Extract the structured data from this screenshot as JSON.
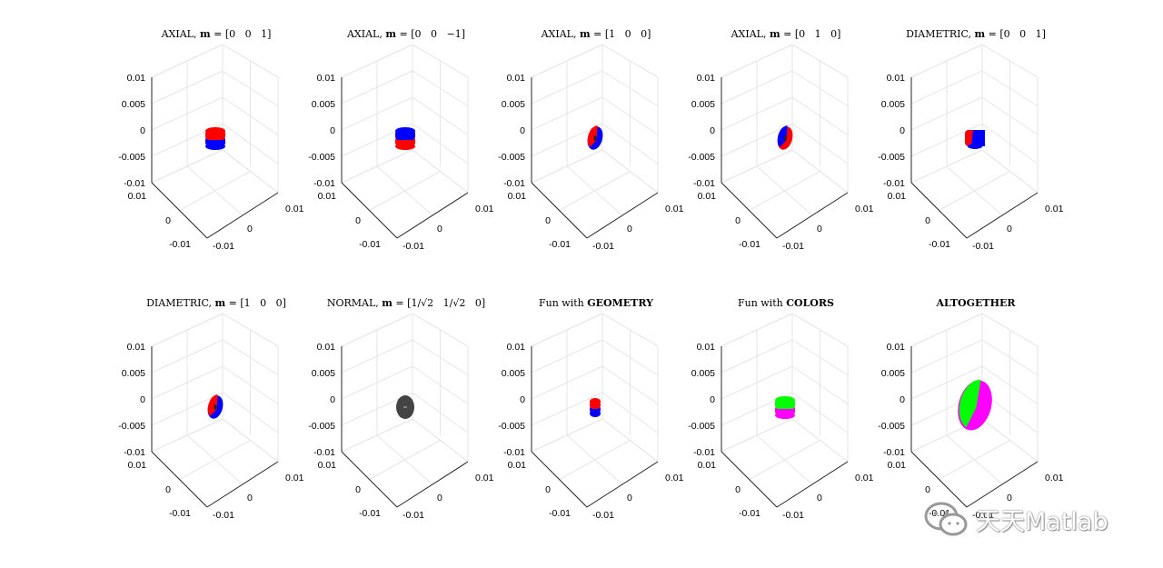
{
  "chart_data": [
    {
      "type": "scatter3d",
      "title_html": "AXIAL, <tspan font-weight='bold'>m</tspan> = [0 &#160; 0 &#160; 1]",
      "shape": {
        "kind": "cylinder",
        "size": "small",
        "colors": [
          "#ff0000",
          "#0000ff"
        ],
        "split": "horizontal"
      },
      "zticks": [
        "0.01",
        "0.005",
        "0",
        "-0.005",
        "-0.01"
      ],
      "xticks": [
        "0.01",
        "0",
        "-0.01"
      ],
      "yticks": [
        "-0.01",
        "0",
        "0.01"
      ],
      "zlim": [
        -0.01,
        0.01
      ]
    },
    {
      "type": "scatter3d",
      "title_html": "AXIAL, <tspan font-weight='bold'>m</tspan> = [0 &#160; 0 &#160; −1]",
      "shape": {
        "kind": "cylinder",
        "size": "small",
        "colors": [
          "#0000ff",
          "#ff0000"
        ],
        "split": "horizontal"
      },
      "zticks": [
        "0.01",
        "0.005",
        "0",
        "-0.005",
        "-0.01"
      ],
      "xticks": [
        "0.01",
        "0",
        "-0.01"
      ],
      "yticks": [
        "-0.01",
        "0",
        "0.01"
      ],
      "zlim": [
        -0.01,
        0.01
      ]
    },
    {
      "type": "scatter3d",
      "title_html": "AXIAL, <tspan font-weight='bold'>m</tspan> = [1 &#160; 0 &#160; 0]",
      "shape": {
        "kind": "tilted",
        "size": "small",
        "colors": [
          "#ff0000",
          "#0000ff"
        ],
        "split": "vertical"
      },
      "zticks": [
        "0.01",
        "0.005",
        "0",
        "-0.005",
        "-0.01"
      ],
      "xticks": [
        "0.01",
        "0",
        "-0.01"
      ],
      "yticks": [
        "-0.01",
        "0",
        "0.01"
      ],
      "zlim": [
        -0.01,
        0.01
      ]
    },
    {
      "type": "scatter3d",
      "title_html": "AXIAL, <tspan font-weight='bold'>m</tspan> = [0 &#160; 1 &#160; 0]",
      "shape": {
        "kind": "tilted",
        "size": "small",
        "colors": [
          "#0000ff",
          "#ff0000"
        ],
        "split": "vertical"
      },
      "zticks": [
        "0.01",
        "0.005",
        "0",
        "-0.005",
        "-0.01"
      ],
      "xticks": [
        "0.01",
        "0",
        "-0.01"
      ],
      "yticks": [
        "-0.01",
        "0",
        "0.01"
      ],
      "zlim": [
        -0.01,
        0.01
      ]
    },
    {
      "type": "scatter3d",
      "title_html": "DIAMETRIC, <tspan font-weight='bold'>m</tspan> = [0 &#160; 0 &#160; 1]",
      "shape": {
        "kind": "cylinder",
        "size": "small",
        "colors": [
          "#ff0000",
          "#0000ff"
        ],
        "split": "diagonal"
      },
      "zticks": [
        "0.01",
        "0.005",
        "0",
        "-0.005",
        "-0.01"
      ],
      "xticks": [
        "0.01",
        "0",
        "-0.01"
      ],
      "yticks": [
        "-0.01",
        "0",
        "0.01"
      ],
      "zlim": [
        -0.01,
        0.01
      ]
    },
    {
      "type": "scatter3d",
      "title_html": "DIAMETRIC, <tspan font-weight='bold'>m</tspan> = [1 &#160; 0 &#160; 0]",
      "shape": {
        "kind": "tilted",
        "size": "small",
        "colors": [
          "#ff0000",
          "#0000ff"
        ],
        "split": "vertical"
      },
      "zticks": [
        "0.01",
        "0.005",
        "0",
        "-0.005",
        "-0.01"
      ],
      "xticks": [
        "0.01",
        "0",
        "-0.01"
      ],
      "yticks": [
        "-0.01",
        "0",
        "0.01"
      ],
      "zlim": [
        -0.01,
        0.01
      ]
    },
    {
      "type": "scatter3d",
      "title_html": "NORMAL, <tspan font-weight='bold'>m</tspan> = [1/√2 &#160; 1/√2 &#160; 0]",
      "shape": {
        "kind": "tilted",
        "size": "small",
        "colors": [
          "#444444",
          "#444444"
        ],
        "split": "none"
      },
      "zticks": [
        "0.01",
        "0.005",
        "0",
        "-0.005",
        "-0.01"
      ],
      "xticks": [
        "0.01",
        "0",
        "-0.01"
      ],
      "yticks": [
        "-0.01",
        "0",
        "0.01"
      ],
      "zlim": [
        -0.01,
        0.01
      ]
    },
    {
      "type": "scatter3d",
      "title_html": "Fun with <tspan font-weight='bold'>GEOMETRY</tspan>",
      "shape": {
        "kind": "cylinder",
        "size": "tiny",
        "colors": [
          "#ff0000",
          "#0000ff"
        ],
        "split": "horizontal"
      },
      "zticks": [
        "0.01",
        "0.005",
        "0",
        "-0.005",
        "-0.01"
      ],
      "xticks": [
        "0.01",
        "0",
        "-0.01"
      ],
      "yticks": [
        "-0.01",
        "0",
        "0.01"
      ],
      "zlim": [
        -0.01,
        0.01
      ]
    },
    {
      "type": "scatter3d",
      "title_html": "Fun with <tspan font-weight='bold'>COLORS</tspan>",
      "shape": {
        "kind": "cylinder",
        "size": "small",
        "colors": [
          "#00ff00",
          "#ff00ff"
        ],
        "split": "horizontal"
      },
      "zticks": [
        "0.01",
        "0.005",
        "0",
        "-0.005",
        "-0.01"
      ],
      "xticks": [
        "0.01",
        "0",
        "-0.01"
      ],
      "yticks": [
        "-0.01",
        "0",
        "0.01"
      ],
      "zlim": [
        -0.01,
        0.01
      ]
    },
    {
      "type": "scatter3d",
      "title_html": "<tspan font-weight='bold'>ALTOGETHER</tspan>",
      "shape": {
        "kind": "tilted",
        "size": "large",
        "colors": [
          "#00ff00",
          "#ff00ff"
        ],
        "split": "vertical"
      },
      "zticks": [
        "0.01",
        "0.005",
        "0",
        "-0.005",
        "-0.01"
      ],
      "xticks": [
        "0.01",
        "0",
        "-0.01"
      ],
      "yticks": [
        "-0.01",
        "0",
        "0.01"
      ],
      "zlim": [
        -0.01,
        0.01
      ]
    }
  ],
  "watermark": {
    "text": "天天Matlab"
  }
}
